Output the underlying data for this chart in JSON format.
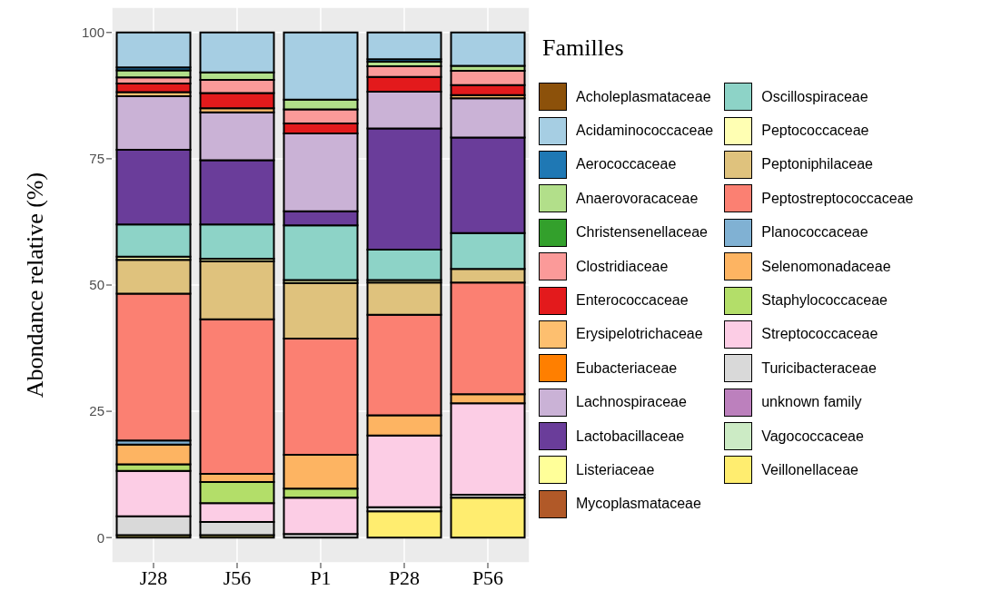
{
  "chart_data": {
    "type": "bar",
    "stacked": true,
    "ylabel": "Abondance relative (%)",
    "legend_title": "Familles",
    "legend": "right",
    "grid": true,
    "categories": [
      "J28",
      "J56",
      "P1",
      "P28",
      "P56"
    ],
    "ylim": [
      -5,
      105
    ],
    "yticks": [
      0,
      25,
      50,
      75,
      100
    ],
    "series": [
      {
        "name": "Veillonellaceae",
        "color": "#ffed6f",
        "values": [
          0.5,
          0.5,
          0,
          5.2,
          7.9
        ]
      },
      {
        "name": "Vagococcaceae",
        "color": "#ccebc5",
        "values": [
          0,
          0,
          0,
          0,
          0
        ]
      },
      {
        "name": "unknown family",
        "color": "#bc80bd",
        "values": [
          0,
          0,
          0,
          0,
          0
        ]
      },
      {
        "name": "Turicibacteraceae",
        "color": "#d9d9d9",
        "values": [
          3.7,
          2.6,
          0.7,
          0.8,
          0.6
        ]
      },
      {
        "name": "Streptococcaceae",
        "color": "#fccde5",
        "values": [
          9.0,
          3.7,
          7.2,
          14.2,
          18.1
        ]
      },
      {
        "name": "Staphylococcaceae",
        "color": "#b3de69",
        "values": [
          1.3,
          4.2,
          1.8,
          0,
          0
        ]
      },
      {
        "name": "Selenomonadaceae",
        "color": "#fdb462",
        "values": [
          3.9,
          1.6,
          6.7,
          4.0,
          1.8
        ]
      },
      {
        "name": "Planococcaceae",
        "color": "#80b1d3",
        "values": [
          0.8,
          0,
          0,
          0,
          0
        ]
      },
      {
        "name": "Peptostreptococcaceae",
        "color": "#fb8072",
        "values": [
          29.1,
          30.6,
          23.0,
          19.9,
          22.1
        ]
      },
      {
        "name": "Peptoniphilaceae",
        "color": "#dfc27d",
        "values": [
          6.7,
          11.5,
          11.0,
          6.4,
          2.7
        ]
      },
      {
        "name": "Peptococcaceae",
        "color": "#ffffb3",
        "values": [
          0.6,
          0.5,
          0.6,
          0.5,
          null
        ]
      },
      {
        "name": "Oscillospiraceae",
        "color": "#8dd3c7",
        "values": [
          6.4,
          6.8,
          10.8,
          6.0,
          7.1
        ]
      },
      {
        "name": "Mycoplasmataceae",
        "color": "#b15928",
        "values": [
          0,
          0,
          0,
          0,
          0
        ]
      },
      {
        "name": "Listeriaceae",
        "color": "#ffff99",
        "values": [
          0,
          0,
          0,
          0,
          0
        ]
      },
      {
        "name": "Lactobacillaceae",
        "color": "#6a3d9a",
        "values": [
          14.8,
          12.7,
          2.8,
          24.0,
          18.9
        ]
      },
      {
        "name": "Lachnospiraceae",
        "color": "#cab2d6",
        "values": [
          10.6,
          9.5,
          15.4,
          7.3,
          7.8
        ]
      },
      {
        "name": "Eubacteriaceae",
        "color": "#ff7f00",
        "values": [
          0,
          0,
          0,
          0,
          0
        ]
      },
      {
        "name": "Erysipelotrichaceae",
        "color": "#fdbf6f",
        "values": [
          0.8,
          0.8,
          0,
          null,
          0.6
        ]
      },
      {
        "name": "Enterococcaceae",
        "color": "#e31a1c",
        "values": [
          1.7,
          3.0,
          2.0,
          2.9,
          2.0
        ]
      },
      {
        "name": "Clostridiaceae",
        "color": "#fb9a99",
        "values": [
          1.2,
          2.6,
          2.8,
          2.1,
          2.8
        ]
      },
      {
        "name": "Christensenellaceae",
        "color": "#33a02c",
        "values": [
          0,
          0,
          0,
          0,
          0
        ]
      },
      {
        "name": "Anaerovoracaceae",
        "color": "#b2df8a",
        "values": [
          1.4,
          1.5,
          1.9,
          0.9,
          1.0
        ]
      },
      {
        "name": "Aerococcaceae",
        "color": "#1f78b4",
        "values": [
          0.6,
          0,
          0,
          0.5,
          0
        ]
      },
      {
        "name": "Acidaminococcaceae",
        "color": "#a6cee3",
        "values": [
          6.9,
          7.9,
          13.3,
          5.3,
          6.6
        ]
      },
      {
        "name": "Acholeplasmataceae",
        "color": "#8c510a",
        "values": [
          0,
          0,
          0,
          0,
          0
        ]
      }
    ]
  }
}
